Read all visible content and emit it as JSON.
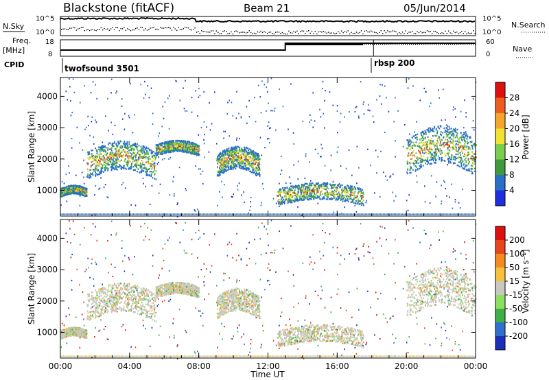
{
  "header": {
    "station": "Blackstone (fitACF)",
    "beam": "Beam 21",
    "date": "05/Jun/2014"
  },
  "top_panels": {
    "nsky_label": "N.Sky",
    "nsearch_label": "N.Search",
    "freq_label_1": "Freq.",
    "freq_label_2": "[MHz]",
    "nave_label": "Nave",
    "cpid_label": "CPID",
    "noise_ticks_left": [
      "10^5",
      "10^0"
    ],
    "noise_ticks_right": [
      "10^5",
      "10^0"
    ],
    "freq_ticks": [
      "18",
      "8"
    ],
    "nave_ticks": [
      "60",
      "0"
    ],
    "cpid_segments": [
      {
        "label": "twofsound 3501",
        "start_hour": 0
      },
      {
        "label": "rbsp 200",
        "start_hour": 18.1
      }
    ]
  },
  "chart_data": [
    {
      "type": "heatmap",
      "title": "",
      "ylabel": "Slant Range [km]",
      "xlabel": "",
      "xlim_hours": [
        0,
        24
      ],
      "ylim": [
        180,
        4600
      ],
      "y_ticks": [
        "1000",
        "2000",
        "3000",
        "4000"
      ],
      "colorbar": {
        "label": "Power [dB]",
        "ticks": [
          "4",
          "8",
          "12",
          "16",
          "20",
          "24",
          "28"
        ],
        "colors": [
          "#1f2fe0",
          "#2870c8",
          "#3f9a3c",
          "#7ccd4e",
          "#f2e232",
          "#f4a52a",
          "#ee5c20",
          "#e00f0f"
        ]
      },
      "echo_bands_km": [
        {
          "t0": 0,
          "t1": 1.5,
          "r0": 800,
          "r1": 1100
        },
        {
          "t0": 1.5,
          "t1": 5.5,
          "r0": 1300,
          "r1": 2300
        },
        {
          "t0": 5.5,
          "t1": 8.0,
          "r0": 2100,
          "r1": 2500
        },
        {
          "t0": 9.0,
          "t1": 11.5,
          "r0": 1400,
          "r1": 2200
        },
        {
          "t0": 12.5,
          "t1": 17.5,
          "r0": 500,
          "r1": 1100
        },
        {
          "t0": 20.0,
          "t1": 24.0,
          "r0": 1400,
          "r1": 2700
        }
      ]
    },
    {
      "type": "heatmap",
      "title": "",
      "ylabel": "Slant Range [km]",
      "xlabel": "Time UT",
      "xlim_hours": [
        0,
        24
      ],
      "ylim": [
        180,
        4600
      ],
      "y_ticks": [
        "1000",
        "2000",
        "3000",
        "4000"
      ],
      "x_ticks": [
        "00:00",
        "04:00",
        "08:00",
        "12:00",
        "16:00",
        "20:00",
        "00:00"
      ],
      "colorbar": {
        "label": "Velocity [m s⁻¹]",
        "ticks": [
          "200",
          "100",
          "50",
          "15",
          "-15",
          "-50",
          "-100",
          "-200"
        ],
        "colors": [
          "#1c2fb8",
          "#2f6fd0",
          "#3fb048",
          "#8ce060",
          "#c8c8c0",
          "#f7c23a",
          "#f58a20",
          "#e8461a",
          "#dd1010"
        ]
      }
    }
  ]
}
